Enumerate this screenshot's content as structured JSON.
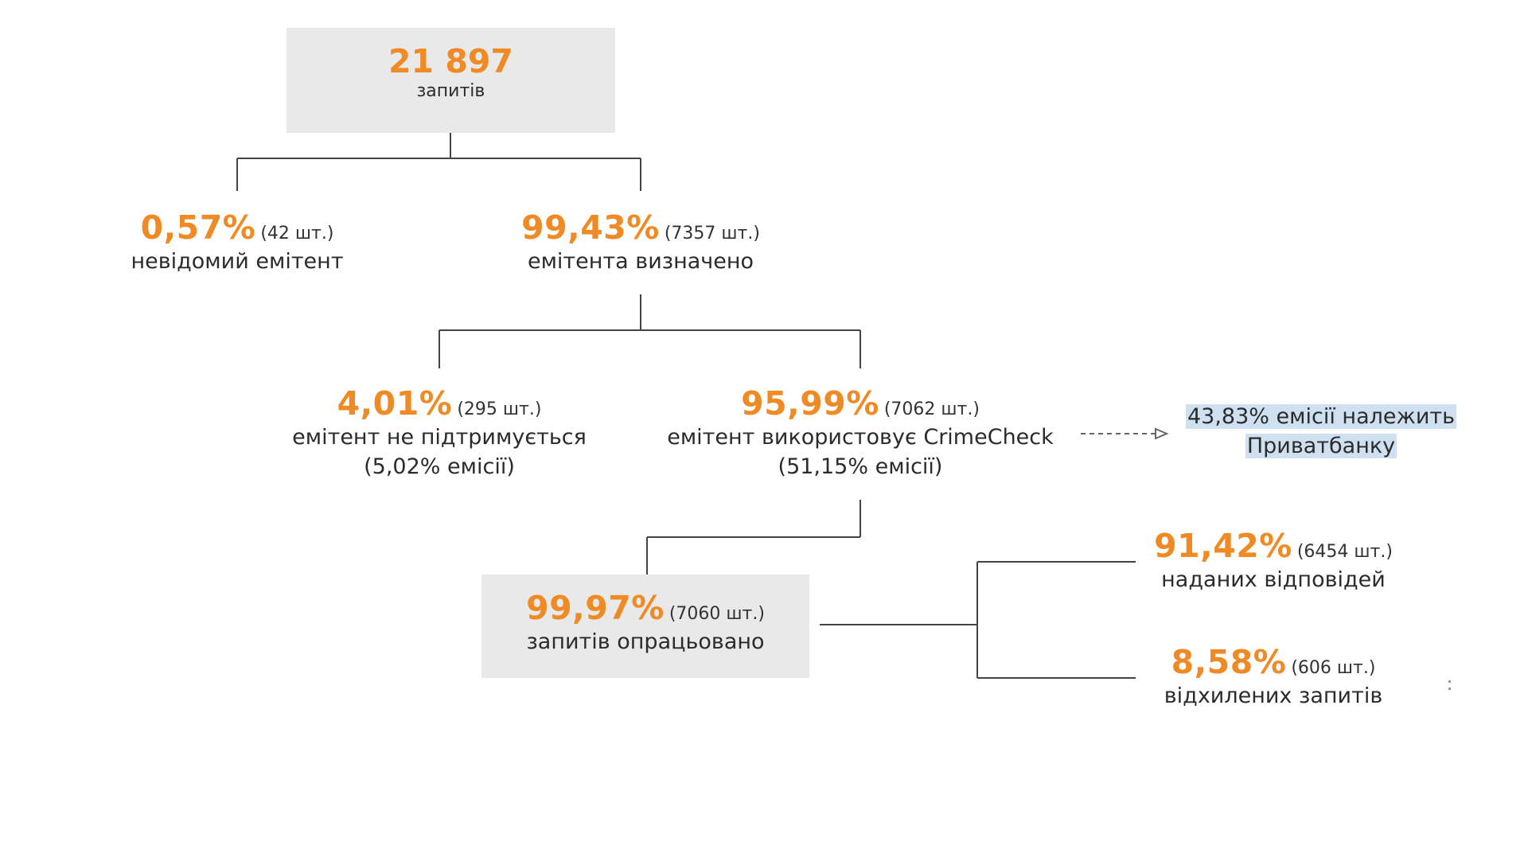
{
  "root": {
    "value": "21 897",
    "label": "запитів"
  },
  "unknown_issuer": {
    "pct": "0,57%",
    "count": "(42 шт.)",
    "label": "невідомий емітент"
  },
  "known_issuer": {
    "pct": "99,43%",
    "count": "(7357 шт.)",
    "label": "емітента визначено"
  },
  "not_supported": {
    "pct": "4,01%",
    "count": "(295 шт.)",
    "label": "емітент не підтримується",
    "sub": "(5,02% емісії)"
  },
  "uses_crimecheck": {
    "pct": "95,99%",
    "count": "(7062 шт.)",
    "label": "емітент використовує CrimeCheck",
    "sub": "(51,15% емісії)"
  },
  "privatbank_note": {
    "line1": "43,83% емісії належить",
    "line2": "Приватбанку"
  },
  "processed": {
    "pct": "99,97%",
    "count": "(7060 шт.)",
    "label": "запитів опрацьовано"
  },
  "answered": {
    "pct": "91,42%",
    "count": "(6454 шт.)",
    "label": "наданих відповідей"
  },
  "rejected": {
    "pct": "8,58%",
    "count": "(606 шт.)",
    "label": "відхилених запитів"
  },
  "colors": {
    "accent": "#f08a24",
    "box": "#e9e9e9",
    "highlight": "#cfe0f1",
    "line": "#444444"
  }
}
